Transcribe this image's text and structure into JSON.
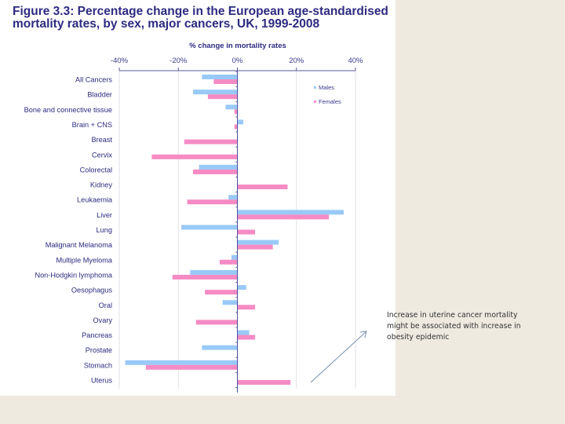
{
  "slide": {
    "background_color": "#eeeae0",
    "annotation": {
      "lines": [
        "Increase in uterine cancer mortality",
        "might be associated with increase in",
        "obesity epidemic"
      ],
      "arrow_icon": "arrow-up-right-icon"
    }
  },
  "chart_data": {
    "type": "bar",
    "orientation": "horizontal",
    "title_lines": [
      "Figure 3.3: Percentage change in the European age-standardised",
      "mortality rates, by sex, major cancers, UK, 1999-2008"
    ],
    "title": "Figure 3.3: Percentage change in the European age-standardised mortality rates, by sex, major cancers, UK, 1999-2008",
    "xlabel": "% change in mortality rates",
    "ylabel": "",
    "xlim": [
      -40,
      40
    ],
    "xticks": [
      -40,
      -20,
      0,
      20,
      40
    ],
    "xtick_labels": [
      "-40%",
      "-20%",
      "0%",
      "20%",
      "40%"
    ],
    "x_axis_position": "top",
    "grid": true,
    "legend": {
      "position": "top-right",
      "entries": [
        "Males",
        "Females"
      ]
    },
    "colors": {
      "Males": "#99c9f7",
      "Females": "#f58bc4",
      "text": "#2d2b80",
      "axis": "#5a5a9a",
      "grid": "#e2e2e8"
    },
    "categories": [
      "All Cancers",
      "Bladder",
      "Bone and connective tissue",
      "Brain + CNS",
      "Breast",
      "Cervix",
      "Colorectal",
      "Kidney",
      "Leukaemia",
      "Liver",
      "Lung",
      "Malignant Melanoma",
      "Multiple Myeloma",
      "Non-Hodgkin lymphoma",
      "Oesophagus",
      "Oral",
      "Ovary",
      "Pancreas",
      "Prostate",
      "Stomach",
      "Uterus"
    ],
    "series": [
      {
        "name": "Males",
        "values": [
          -12,
          -15,
          -4,
          2,
          null,
          null,
          -13,
          null,
          -3,
          36,
          -19,
          14,
          -2,
          -16,
          3,
          -5,
          null,
          4,
          -12,
          -38,
          null
        ]
      },
      {
        "name": "Females",
        "values": [
          -8,
          -10,
          -1,
          -1,
          -18,
          -29,
          -15,
          17,
          -17,
          31,
          6,
          12,
          -6,
          -22,
          -11,
          6,
          -14,
          6,
          null,
          -31,
          18
        ]
      }
    ]
  }
}
